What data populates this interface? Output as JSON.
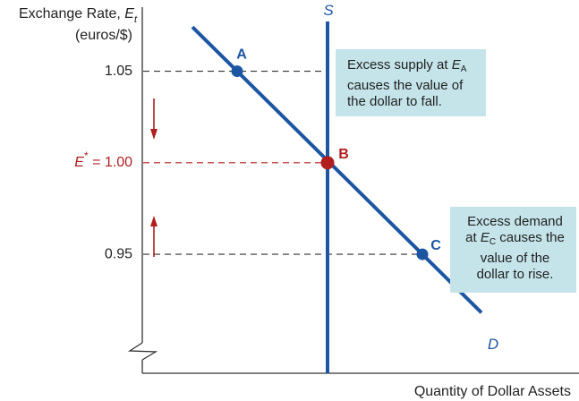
{
  "chart_data": {
    "type": "line",
    "title": "",
    "ylabel_line1": "Exchange Rate, ",
    "ylabel_var": "E",
    "ylabel_sub": "t",
    "ylabel_line2": "(euros/$)",
    "xlabel": "Quantity of Dollar Assets",
    "yticks": [
      {
        "value": 1.05,
        "label": "1.05"
      },
      {
        "value": 0.95,
        "label": "0.95"
      }
    ],
    "equilibrium_label_var": "E",
    "equilibrium_label_sup": "*",
    "equilibrium_label_rest": " = 1.00",
    "equilibrium_value": 1.0,
    "ylim": [
      0.885,
      1.085
    ],
    "supply": {
      "name": "S",
      "quantity": 0
    },
    "demand": {
      "name": "D",
      "slope_per_quantity": -0.000247,
      "through": {
        "quantity": 0,
        "rate": 1.0
      }
    },
    "points": [
      {
        "label": "A",
        "rate": 1.05
      },
      {
        "label": "B",
        "rate": 1.0
      },
      {
        "label": "C",
        "rate": 0.95
      }
    ],
    "annotations": {
      "callout_a": {
        "pre": "Excess supply at ",
        "var": "E",
        "sub": "A",
        "line2": "causes the value of",
        "line3": "the dollar to fall."
      },
      "callout_c": {
        "line1": "Excess demand",
        "pre": "at ",
        "var": "E",
        "sub": "C",
        "post": " causes the",
        "line3": "value of the",
        "line4": "dollar to rise."
      }
    },
    "colors": {
      "axis": "#333333",
      "curve": "#1c56a3",
      "equilibrium": "#b01e1e",
      "point": "#1c56a3",
      "callout_bg": "#c4e4ea"
    },
    "axis_break": true
  }
}
